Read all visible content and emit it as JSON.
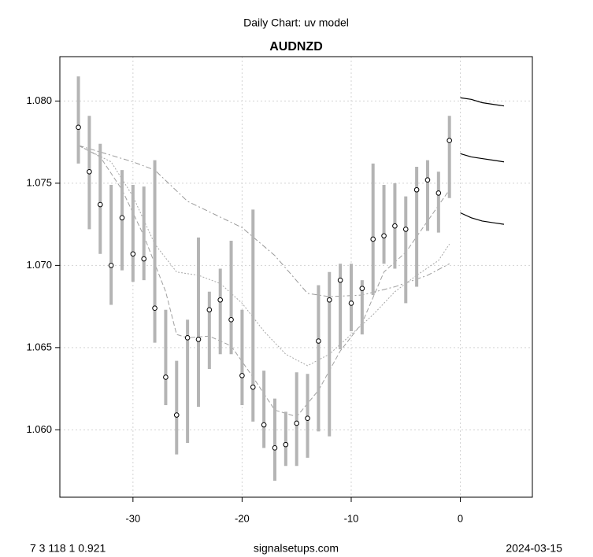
{
  "chart_data": {
    "type": "range",
    "title": "Daily Chart: uv model",
    "subtitle": "AUDNZD",
    "footer_left": "7 3 118 1 0.921",
    "footer_center": "signalsetups.com",
    "footer_right": "2024-03-15",
    "x": [
      -35,
      -34,
      -33,
      -32,
      -31,
      -30,
      -29,
      -28,
      -27,
      -26,
      -25,
      -24,
      -23,
      -22,
      -21,
      -20,
      -19,
      -18,
      -17,
      -16,
      -15,
      -14,
      -13,
      -12,
      -11,
      -10,
      -9,
      -8,
      -7,
      -6,
      -5,
      -4,
      -3,
      -2,
      -1
    ],
    "high": [
      1.0815,
      1.0791,
      1.0774,
      1.0749,
      1.0758,
      1.0749,
      1.0748,
      1.0764,
      1.0673,
      1.0642,
      1.0667,
      1.0717,
      1.0684,
      1.0698,
      1.0715,
      1.0673,
      1.0734,
      1.0636,
      1.0619,
      1.0611,
      1.0635,
      1.0634,
      1.0688,
      1.0696,
      1.0701,
      1.0701,
      1.0691,
      1.0762,
      1.0749,
      1.075,
      1.0742,
      1.076,
      1.0764,
      1.0757,
      1.0791
    ],
    "low": [
      1.0762,
      1.0722,
      1.0707,
      1.0676,
      1.0697,
      1.069,
      1.0691,
      1.0653,
      1.0615,
      1.0585,
      1.0592,
      1.0614,
      1.0637,
      1.0646,
      1.0646,
      1.0615,
      1.0605,
      1.0589,
      1.0569,
      1.0578,
      1.0578,
      1.0583,
      1.0599,
      1.0596,
      1.0649,
      1.066,
      1.0658,
      1.0682,
      1.0701,
      1.0698,
      1.0677,
      1.0687,
      1.0721,
      1.072,
      1.0741
    ],
    "close": [
      1.0784,
      1.0757,
      1.0737,
      1.07,
      1.0729,
      1.0707,
      1.0704,
      1.0674,
      1.0632,
      1.0609,
      1.0656,
      1.0655,
      1.0673,
      1.0679,
      1.0667,
      1.0633,
      1.0626,
      1.0603,
      1.0589,
      1.0591,
      1.0604,
      1.0607,
      1.0654,
      1.0679,
      1.0691,
      1.0677,
      1.0686,
      1.0716,
      1.0718,
      1.0724,
      1.0722,
      1.0746,
      1.0752,
      1.0744,
      1.0776
    ],
    "bar_color": "#b4b4b4",
    "point_color": "#000000",
    "lines": [
      {
        "color": "#9a9a9a",
        "x": [
          -35,
          -30,
          -28,
          -25,
          -20,
          -17,
          -14,
          -12,
          -9,
          -6,
          -3,
          -1
        ],
        "values": [
          1.0773,
          1.0763,
          1.0758,
          1.0739,
          1.0723,
          1.0706,
          1.0683,
          1.0681,
          1.0682,
          1.0687,
          1.0694,
          1.0701
        ]
      },
      {
        "color": "#a8a8a8",
        "x": [
          -35,
          -32,
          -30,
          -28,
          -26,
          -24,
          -22,
          -20,
          -18,
          -16,
          -14,
          -12,
          -10,
          -8,
          -6,
          -4,
          -2,
          -1
        ],
        "values": [
          1.0773,
          1.0763,
          1.0742,
          1.0713,
          1.0696,
          1.0694,
          1.0689,
          1.0677,
          1.066,
          1.0646,
          1.0639,
          1.0646,
          1.0658,
          1.067,
          1.0684,
          1.0694,
          1.0703,
          1.0713
        ]
      },
      {
        "color": "#a0a0a0",
        "x": [
          -35,
          -33,
          -31,
          -29,
          -27,
          -26,
          -25,
          -23,
          -21,
          -19,
          -17,
          -15,
          -13,
          -11,
          -9,
          -7,
          -5,
          -3,
          -1
        ],
        "values": [
          1.0773,
          1.0766,
          1.0746,
          1.0718,
          1.0684,
          1.0658,
          1.0656,
          1.0657,
          1.0651,
          1.0632,
          1.0612,
          1.0608,
          1.0624,
          1.0648,
          1.0665,
          1.0696,
          1.0708,
          1.0727,
          1.0746
        ]
      }
    ],
    "forecast_x": [
      0,
      1,
      2,
      3,
      4
    ],
    "forecast_color": "#000000",
    "forecast": [
      {
        "values": [
          1.0802,
          1.0801,
          1.0799,
          1.0798,
          1.0797
        ]
      },
      {
        "values": [
          1.0768,
          1.0766,
          1.0765,
          1.0764,
          1.0763
        ]
      },
      {
        "values": [
          1.0732,
          1.0729,
          1.0727,
          1.0726,
          1.0725
        ]
      }
    ],
    "xlim": [
      -36.7,
      6.6
    ],
    "ylim": [
      1.0559,
      1.0827
    ],
    "xticks": [
      -30,
      -20,
      -10,
      0
    ],
    "yticks": [
      {
        "value": 1.06,
        "label": "1.060"
      },
      1.065,
      {
        "value": 1.07,
        "label": "1.070"
      },
      1.075,
      {
        "value": 1.08,
        "label": "1.080"
      }
    ],
    "grid": true
  }
}
